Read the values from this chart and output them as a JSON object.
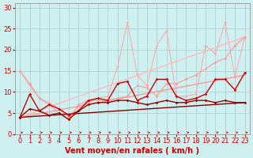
{
  "bg_color": "#cff0f0",
  "grid_color": "#aacccc",
  "xlabel": "Vent moyen/en rafales ( km/h )",
  "xlabel_color": "#cc0000",
  "xlabel_fontsize": 7,
  "tick_color": "#cc0000",
  "tick_fontsize": 6,
  "yticks": [
    0,
    5,
    10,
    15,
    20,
    25,
    30
  ],
  "xlim": [
    -0.5,
    23.5
  ],
  "ylim": [
    0,
    31
  ],
  "series": [
    {
      "x": [
        0,
        1,
        2,
        3,
        4,
        5,
        6,
        7,
        8,
        9,
        10,
        11,
        12,
        13,
        14,
        15,
        16,
        17,
        18,
        19,
        20,
        21,
        22,
        23
      ],
      "y": [
        15,
        12,
        8.5,
        7,
        5,
        3.5,
        7,
        8,
        8,
        8,
        8.5,
        9,
        11.5,
        11,
        9,
        12,
        12,
        13,
        14,
        15.5,
        17,
        18,
        21,
        23
      ],
      "color": "#ff9999",
      "lw": 0.8,
      "marker": "D",
      "ms": 1.8,
      "linestyle": "-",
      "zorder": 3
    },
    {
      "x": [
        0,
        1,
        2,
        3,
        4,
        5,
        6,
        7,
        8,
        9,
        10,
        11,
        12,
        13,
        14,
        15,
        16,
        17,
        18,
        19,
        20,
        21,
        22,
        23
      ],
      "y": [
        15,
        11.5,
        8.5,
        7.5,
        6,
        4,
        6.5,
        7.5,
        8.5,
        9,
        16,
        26.5,
        14,
        11.5,
        21,
        24.5,
        9,
        9,
        9.5,
        21,
        19,
        26.5,
        13.5,
        23
      ],
      "color": "#ffaaaa",
      "lw": 0.8,
      "marker": "D",
      "ms": 1.8,
      "linestyle": "-",
      "zorder": 2
    },
    {
      "x": [
        0,
        23
      ],
      "y": [
        4,
        14
      ],
      "color": "#ff9999",
      "lw": 1.0,
      "marker": null,
      "ms": 0,
      "linestyle": "-",
      "zorder": 2
    },
    {
      "x": [
        0,
        23
      ],
      "y": [
        4,
        23
      ],
      "color": "#ffbbbb",
      "lw": 1.0,
      "marker": null,
      "ms": 0,
      "linestyle": "-",
      "zorder": 2
    },
    {
      "x": [
        0,
        1,
        2,
        3,
        4,
        5,
        6,
        7,
        8,
        9,
        10,
        11,
        12,
        13,
        14,
        15,
        16,
        17,
        18,
        19,
        20,
        21,
        22,
        23
      ],
      "y": [
        4,
        9.5,
        5.5,
        7,
        6,
        4.5,
        5.5,
        8,
        8.5,
        8,
        12,
        12.5,
        8,
        9,
        13,
        13,
        9,
        8,
        8.5,
        9.5,
        13,
        13,
        10.5,
        14.5
      ],
      "color": "#cc0000",
      "lw": 1.0,
      "marker": "D",
      "ms": 1.8,
      "linestyle": "-",
      "zorder": 4
    },
    {
      "x": [
        0,
        1,
        2,
        3,
        4,
        5,
        6,
        7,
        8,
        9,
        10,
        11,
        12,
        13,
        14,
        15,
        16,
        17,
        18,
        19,
        20,
        21,
        22,
        23
      ],
      "y": [
        4,
        6,
        5.5,
        4.5,
        5,
        3.5,
        5.5,
        7,
        7.5,
        7.5,
        8,
        8,
        7.5,
        7,
        7.5,
        8,
        7.5,
        7.5,
        8,
        8,
        7.5,
        8,
        7.5,
        7.5
      ],
      "color": "#990000",
      "lw": 1.0,
      "marker": "D",
      "ms": 1.8,
      "linestyle": "-",
      "zorder": 4
    },
    {
      "x": [
        0,
        23
      ],
      "y": [
        4,
        7.5
      ],
      "color": "#880000",
      "lw": 1.0,
      "marker": null,
      "ms": 0,
      "linestyle": "-",
      "zorder": 2
    }
  ]
}
